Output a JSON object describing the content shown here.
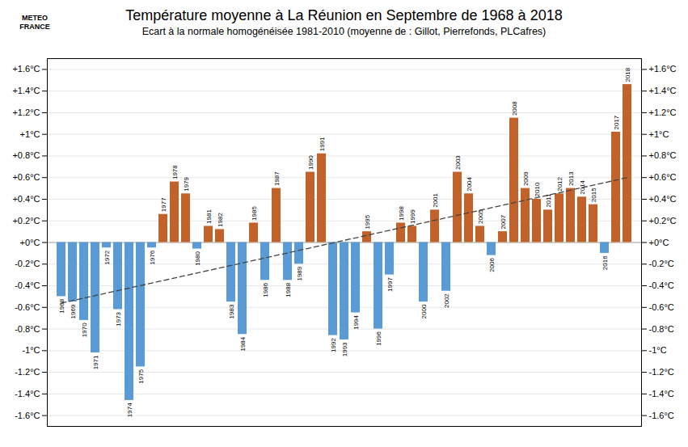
{
  "chart_data": {
    "type": "bar",
    "title": "Température moyenne à La Réunion en Septembre de 1968 à 2018",
    "subtitle": "Ecart à la normale homogénéisée 1981-2010 (moyenne de : Gillot, Pierrefonds, PLCafres)",
    "annotations": [
      "METEO",
      "FRANCE"
    ],
    "categories": [
      "1968",
      "1969",
      "1970",
      "1971",
      "1972",
      "1973",
      "1974",
      "1975",
      "1976",
      "1977",
      "1978",
      "1979",
      "1980",
      "1981",
      "1982",
      "1983",
      "1984",
      "1985",
      "1986",
      "1987",
      "1988",
      "1989",
      "1990",
      "1991",
      "1992",
      "1993",
      "1994",
      "1995",
      "1996",
      "1997",
      "1998",
      "1999",
      "2000",
      "2001",
      "2002",
      "2003",
      "2004",
      "2005",
      "2006",
      "2007",
      "2008",
      "2009",
      "2010",
      "2011",
      "2012",
      "2013",
      "2014",
      "2015",
      "2016",
      "2017",
      "2018"
    ],
    "values": [
      -0.5,
      -0.55,
      -0.72,
      -1.02,
      -0.05,
      -0.62,
      -1.46,
      -1.15,
      -0.05,
      0.26,
      0.56,
      0.45,
      -0.06,
      0.15,
      0.12,
      -0.55,
      -0.85,
      0.18,
      -0.35,
      0.5,
      -0.35,
      -0.2,
      0.65,
      0.82,
      -0.86,
      -0.9,
      -0.65,
      0.1,
      -0.8,
      -0.3,
      0.18,
      0.15,
      -0.55,
      0.3,
      -0.45,
      0.65,
      0.45,
      0.15,
      -0.12,
      0.1,
      1.15,
      0.5,
      0.4,
      0.3,
      0.45,
      0.5,
      0.42,
      0.35,
      -0.1,
      1.02,
      1.46
    ],
    "colors": [
      "#5B9BD5",
      "#5B9BD5",
      "#5B9BD5",
      "#5B9BD5",
      "#5B9BD5",
      "#5B9BD5",
      "#5B9BD5",
      "#5B9BD5",
      "#5B9BD5",
      "#C0622A",
      "#C0622A",
      "#C0622A",
      "#5B9BD5",
      "#C0622A",
      "#C0622A",
      "#5B9BD5",
      "#5B9BD5",
      "#C0622A",
      "#5B9BD5",
      "#C0622A",
      "#5B9BD5",
      "#5B9BD5",
      "#C0622A",
      "#C0622A",
      "#5B9BD5",
      "#5B9BD5",
      "#5B9BD5",
      "#C0622A",
      "#5B9BD5",
      "#5B9BD5",
      "#C0622A",
      "#C0622A",
      "#5B9BD5",
      "#C0622A",
      "#5B9BD5",
      "#C0622A",
      "#C0622A",
      "#C0622A",
      "#5B9BD5",
      "#C0622A",
      "#C0622A",
      "#C0622A",
      "#C0622A",
      "#C0622A",
      "#C0622A",
      "#C0622A",
      "#C0622A",
      "#C0622A",
      "#5B9BD5",
      "#C0622A",
      "#C0622A"
    ],
    "trend_line": {
      "x": [
        "1968",
        "2018"
      ],
      "values": [
        -0.56,
        0.6
      ],
      "color": "#444444",
      "line_style": "dashed"
    },
    "ylim": [
      -1.7,
      1.7
    ],
    "yticks": [
      {
        "value": -1.6,
        "label": "-1.6°C"
      },
      {
        "value": -1.4,
        "label": "-1.4°C"
      },
      {
        "value": -1.2,
        "label": "-1.2°C"
      },
      {
        "value": -1.0,
        "label": "-1°C"
      },
      {
        "value": -0.8,
        "label": "-0.8°C"
      },
      {
        "value": -0.6,
        "label": "-0.6°C"
      },
      {
        "value": -0.4,
        "label": "-0.4°C"
      },
      {
        "value": -0.2,
        "label": "-0.2°C"
      },
      {
        "value": 0.0,
        "label": "+0°C"
      },
      {
        "value": 0.2,
        "label": "+0.2°C"
      },
      {
        "value": 0.4,
        "label": "+0.4°C"
      },
      {
        "value": 0.6,
        "label": "+0.6°C"
      },
      {
        "value": 0.8,
        "label": "+0.8°C"
      },
      {
        "value": 1.0,
        "label": "+1°C"
      },
      {
        "value": 1.2,
        "label": "+1.2°C"
      },
      {
        "value": 1.4,
        "label": "+1.4°C"
      },
      {
        "value": 1.6,
        "label": "+1.6°C"
      }
    ],
    "y2lim": [
      -1.7,
      1.7
    ],
    "y2ticks": [
      {
        "value": -1.6,
        "label": "-1.6°C"
      },
      {
        "value": -1.4,
        "label": "-1.4°C"
      },
      {
        "value": -1.2,
        "label": "-1.2°C"
      },
      {
        "value": -1.0,
        "label": "-1°C"
      },
      {
        "value": -0.8,
        "label": "-0.8°C"
      },
      {
        "value": -0.6,
        "label": "-0.6°C"
      },
      {
        "value": -0.4,
        "label": "-0.4°C"
      },
      {
        "value": -0.2,
        "label": "-0.2°C"
      },
      {
        "value": 0.0,
        "label": "+0°C"
      },
      {
        "value": 0.2,
        "label": "+0.2°C"
      },
      {
        "value": 0.4,
        "label": "+0.4°C"
      },
      {
        "value": 0.6,
        "label": "+0.6°C"
      },
      {
        "value": 0.8,
        "label": "+0.8°C"
      },
      {
        "value": 1.0,
        "label": "+1°C"
      },
      {
        "value": 1.2,
        "label": "+1.2°C"
      },
      {
        "value": 1.4,
        "label": "+1.4°C"
      },
      {
        "value": 1.6,
        "label": "+1.6°C"
      }
    ],
    "grid": true,
    "tick_labels": "y"
  }
}
